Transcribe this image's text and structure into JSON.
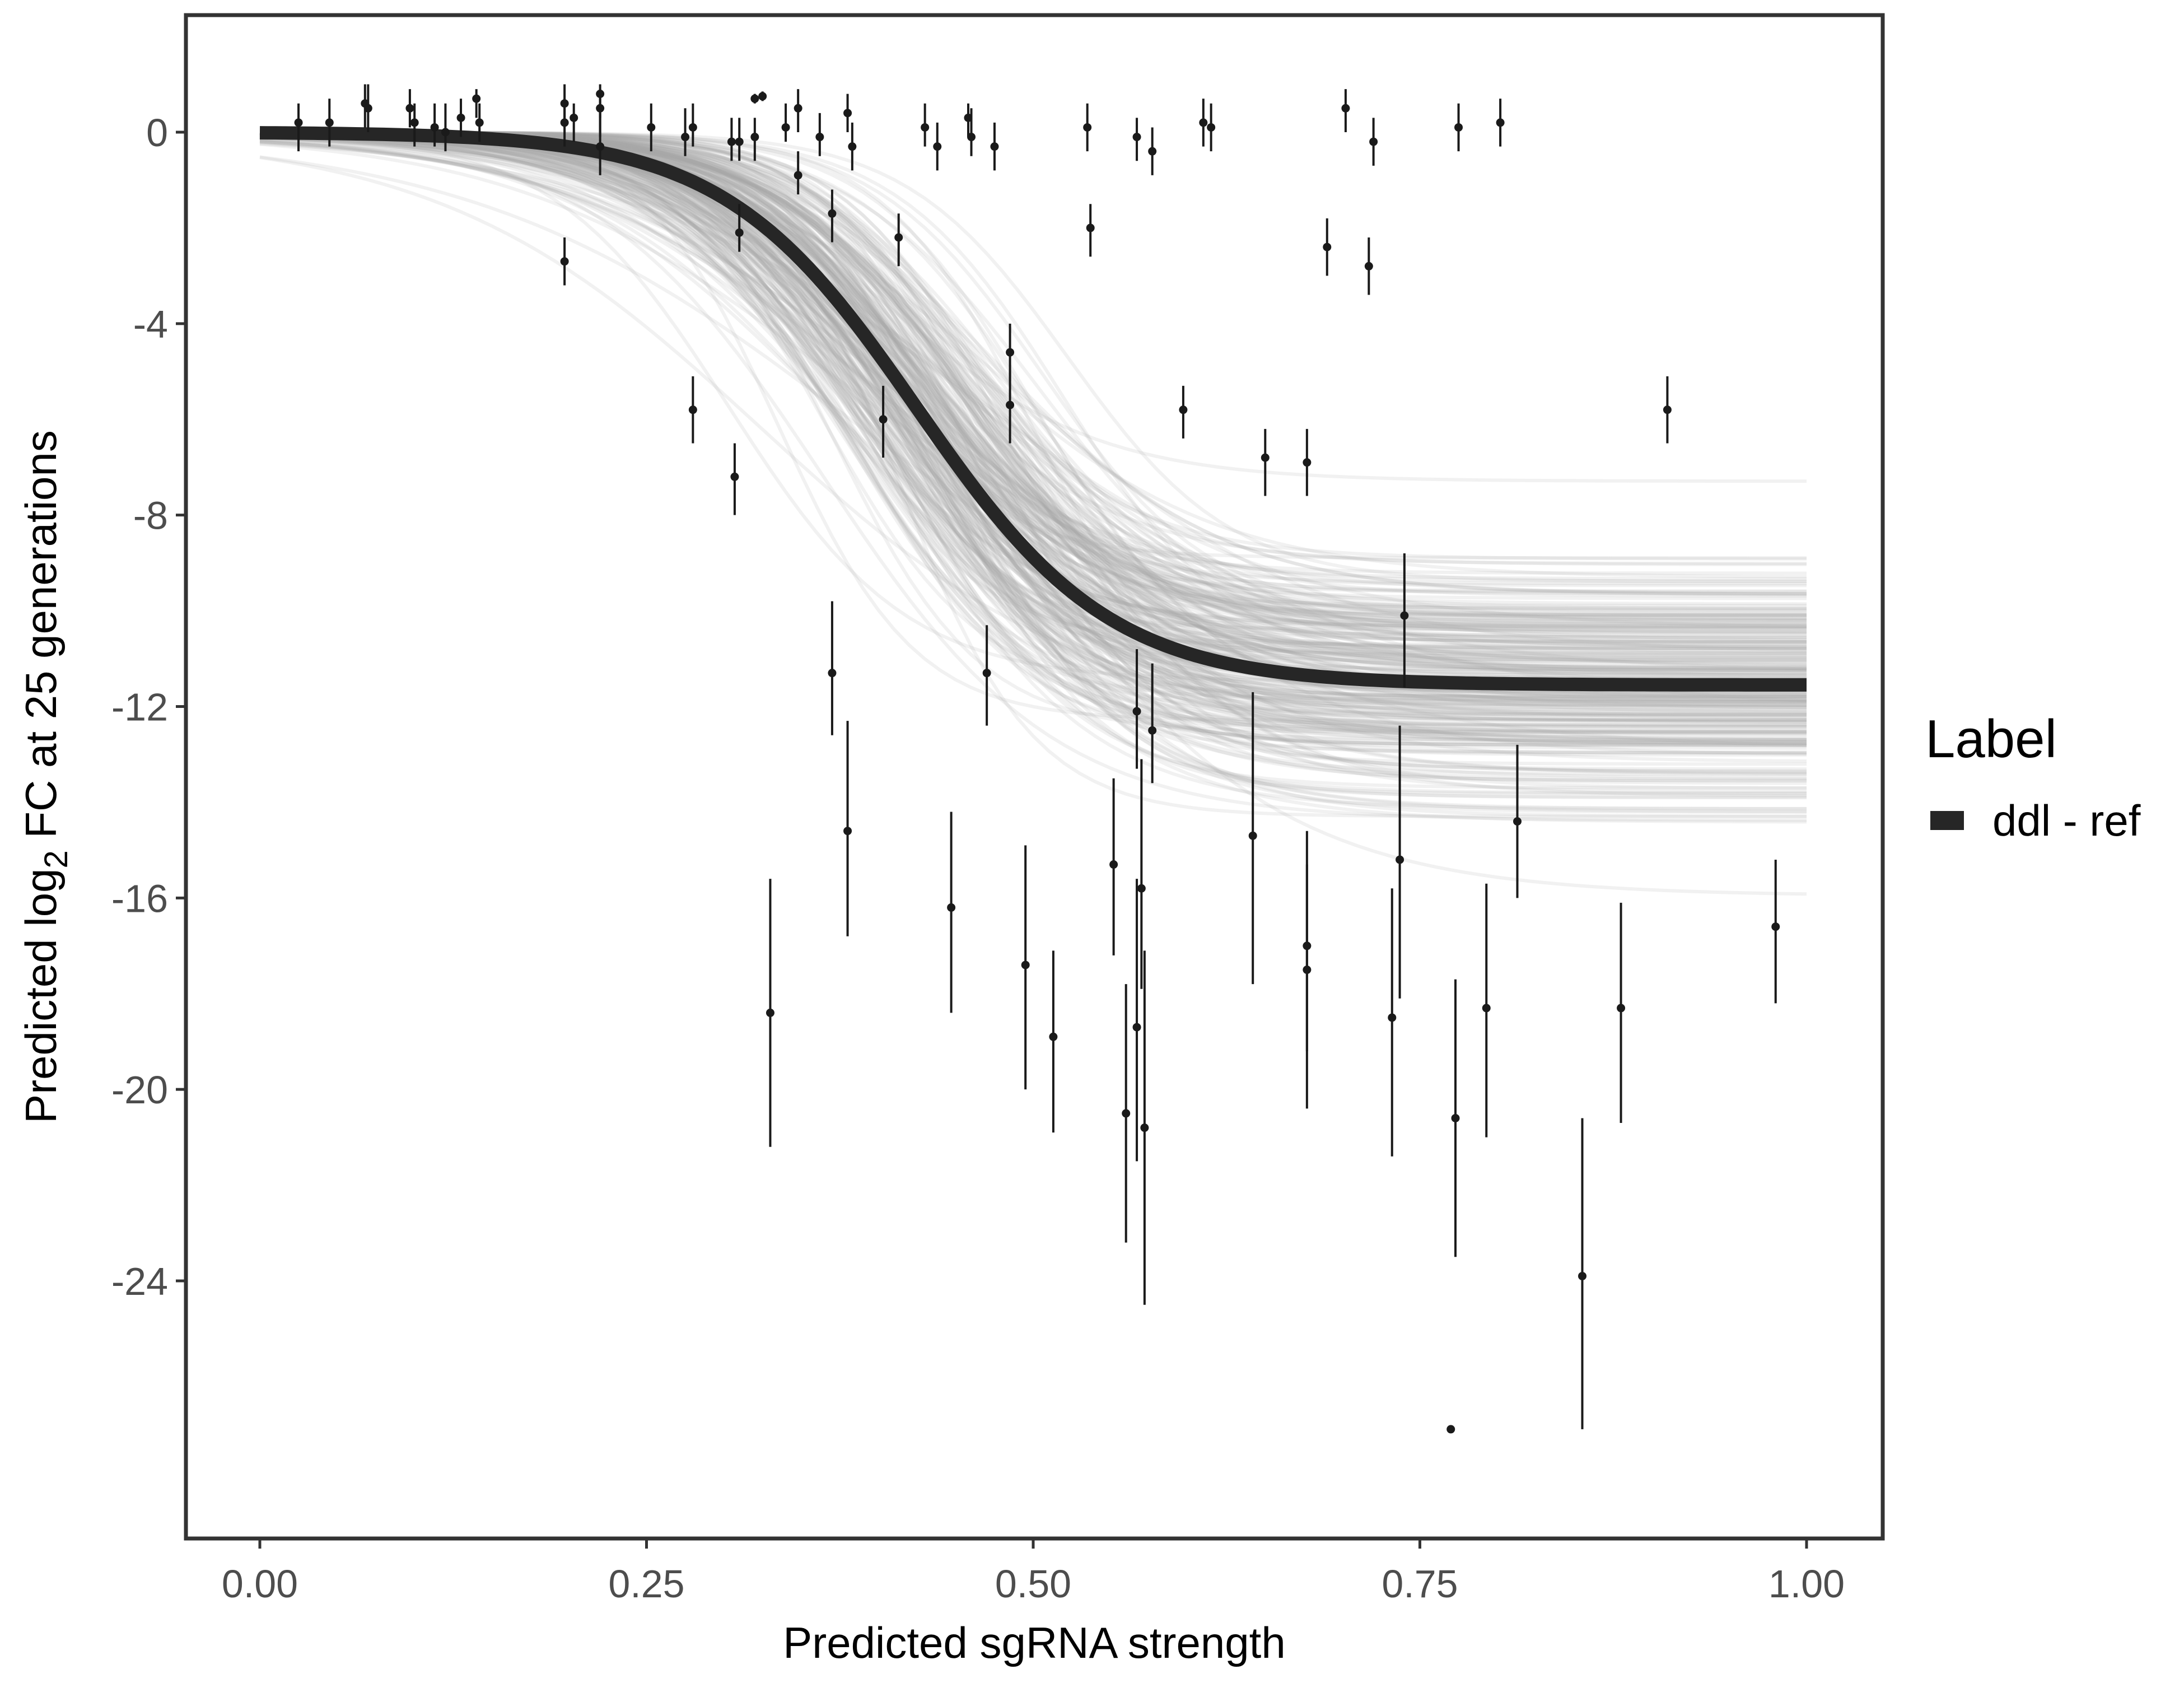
{
  "chart_data": {
    "type": "scatter",
    "xlabel": "Predicted sgRNA strength",
    "ylabel": {
      "prefix": "Predicted  log",
      "subscript": "2",
      "suffix": " FC at 25 generations"
    },
    "xlim": [
      -0.05,
      1.05
    ],
    "ylim": [
      -29.5,
      2.5
    ],
    "x_ticks": [
      0.0,
      0.25,
      0.5,
      0.75,
      1.0
    ],
    "x_tick_labels": [
      "0.00",
      "0.25",
      "0.50",
      "0.75",
      "1.00"
    ],
    "y_ticks": [
      0,
      -4,
      -8,
      -12,
      -16,
      -20,
      -24
    ],
    "y_tick_labels": [
      "0",
      "-4",
      "-8",
      "-12",
      "-16",
      "-20",
      "-24"
    ],
    "grid": false,
    "legend": {
      "title": "Label",
      "position": "right",
      "entries": [
        {
          "label": "ddl - ref",
          "color": "#262626"
        }
      ]
    },
    "fit": {
      "name": "ddl - ref",
      "form": "y = A / (1 + exp(-k (x - x0)))",
      "A": -11.55,
      "k": 16,
      "x0": 0.425,
      "color": "#262626",
      "posterior_draw_color": "#a6a6a6"
    },
    "points": [
      {
        "x": 0.025,
        "y": 0.2,
        "lo": -0.4,
        "hi": 0.6
      },
      {
        "x": 0.045,
        "y": 0.2,
        "lo": -0.3,
        "hi": 0.7
      },
      {
        "x": 0.068,
        "y": 0.6,
        "lo": 0.1,
        "hi": 1.0
      },
      {
        "x": 0.07,
        "y": 0.5,
        "lo": 0.0,
        "hi": 1.0
      },
      {
        "x": 0.097,
        "y": 0.5,
        "lo": 0.1,
        "hi": 0.9
      },
      {
        "x": 0.1,
        "y": 0.2,
        "lo": -0.3,
        "hi": 0.6
      },
      {
        "x": 0.113,
        "y": 0.1,
        "lo": -0.3,
        "hi": 0.6
      },
      {
        "x": 0.12,
        "y": 0.0,
        "lo": -0.4,
        "hi": 0.6
      },
      {
        "x": 0.13,
        "y": 0.3,
        "lo": -0.1,
        "hi": 0.7
      },
      {
        "x": 0.14,
        "y": 0.7,
        "lo": 0.3,
        "hi": 0.9
      },
      {
        "x": 0.142,
        "y": 0.2,
        "lo": -0.2,
        "hi": 0.6
      },
      {
        "x": 0.197,
        "y": 0.6,
        "lo": 0.1,
        "hi": 1.0
      },
      {
        "x": 0.197,
        "y": 0.2,
        "lo": -0.3,
        "hi": 0.7
      },
      {
        "x": 0.197,
        "y": -2.7,
        "lo": -3.2,
        "hi": -2.2
      },
      {
        "x": 0.203,
        "y": 0.3,
        "lo": -0.2,
        "hi": 0.6
      },
      {
        "x": 0.22,
        "y": 0.8,
        "lo": 0.3,
        "hi": 1.0
      },
      {
        "x": 0.22,
        "y": 0.5,
        "lo": -0.1,
        "hi": 0.9
      },
      {
        "x": 0.22,
        "y": -0.3,
        "lo": -0.9,
        "hi": 0.4
      },
      {
        "x": 0.253,
        "y": 0.1,
        "lo": -0.4,
        "hi": 0.6
      },
      {
        "x": 0.275,
        "y": -0.1,
        "lo": -0.5,
        "hi": 0.5
      },
      {
        "x": 0.28,
        "y": 0.1,
        "lo": -0.3,
        "hi": 0.6
      },
      {
        "x": 0.28,
        "y": -5.8,
        "lo": -6.5,
        "hi": -5.1
      },
      {
        "x": 0.305,
        "y": -0.2,
        "lo": -0.6,
        "hi": 0.3
      },
      {
        "x": 0.307,
        "y": -7.2,
        "lo": -8.0,
        "hi": -6.5
      },
      {
        "x": 0.31,
        "y": -2.1,
        "lo": -2.5,
        "hi": -1.5
      },
      {
        "x": 0.31,
        "y": -0.2,
        "lo": -0.6,
        "hi": 0.3
      },
      {
        "x": 0.32,
        "y": -0.1,
        "lo": -0.6,
        "hi": 0.3
      },
      {
        "x": 0.32,
        "y": 0.7,
        "lo": 0.6,
        "hi": 0.8
      },
      {
        "x": 0.325,
        "y": 0.75,
        "lo": 0.65,
        "hi": 0.85
      },
      {
        "x": 0.33,
        "y": -18.4,
        "lo": -21.2,
        "hi": -15.6
      },
      {
        "x": 0.34,
        "y": 0.1,
        "lo": -0.2,
        "hi": 0.6
      },
      {
        "x": 0.348,
        "y": 0.5,
        "lo": 0.0,
        "hi": 0.9
      },
      {
        "x": 0.348,
        "y": -0.9,
        "lo": -1.3,
        "hi": -0.4
      },
      {
        "x": 0.362,
        "y": -0.1,
        "lo": -0.5,
        "hi": 0.4
      },
      {
        "x": 0.37,
        "y": -1.7,
        "lo": -2.3,
        "hi": -1.2
      },
      {
        "x": 0.37,
        "y": -11.3,
        "lo": -12.6,
        "hi": -9.8
      },
      {
        "x": 0.38,
        "y": 0.4,
        "lo": 0.0,
        "hi": 0.8
      },
      {
        "x": 0.38,
        "y": -14.6,
        "lo": -16.8,
        "hi": -12.3
      },
      {
        "x": 0.383,
        "y": -0.3,
        "lo": -0.8,
        "hi": 0.2
      },
      {
        "x": 0.403,
        "y": -6.0,
        "lo": -6.8,
        "hi": -5.3
      },
      {
        "x": 0.413,
        "y": -2.2,
        "lo": -2.8,
        "hi": -1.7
      },
      {
        "x": 0.43,
        "y": 0.1,
        "lo": -0.3,
        "hi": 0.6
      },
      {
        "x": 0.438,
        "y": -0.3,
        "lo": -0.8,
        "hi": 0.2
      },
      {
        "x": 0.447,
        "y": -16.2,
        "lo": -18.4,
        "hi": -14.2
      },
      {
        "x": 0.458,
        "y": 0.3,
        "lo": -0.1,
        "hi": 0.6
      },
      {
        "x": 0.46,
        "y": -0.1,
        "lo": -0.5,
        "hi": 0.5
      },
      {
        "x": 0.47,
        "y": -11.3,
        "lo": -12.4,
        "hi": -10.3
      },
      {
        "x": 0.475,
        "y": -0.3,
        "lo": -0.8,
        "hi": 0.2
      },
      {
        "x": 0.485,
        "y": -4.6,
        "lo": -5.2,
        "hi": -4.0
      },
      {
        "x": 0.485,
        "y": -5.7,
        "lo": -6.5,
        "hi": -5.0
      },
      {
        "x": 0.495,
        "y": -17.4,
        "lo": -20.0,
        "hi": -14.9
      },
      {
        "x": 0.513,
        "y": -18.9,
        "lo": -20.9,
        "hi": -17.1
      },
      {
        "x": 0.535,
        "y": 0.1,
        "lo": -0.4,
        "hi": 0.6
      },
      {
        "x": 0.537,
        "y": -2.0,
        "lo": -2.6,
        "hi": -1.5
      },
      {
        "x": 0.552,
        "y": -15.3,
        "lo": -17.2,
        "hi": -13.5
      },
      {
        "x": 0.56,
        "y": -20.5,
        "lo": -23.2,
        "hi": -17.8
      },
      {
        "x": 0.567,
        "y": -0.1,
        "lo": -0.6,
        "hi": 0.3
      },
      {
        "x": 0.567,
        "y": -12.1,
        "lo": -13.3,
        "hi": -10.8
      },
      {
        "x": 0.567,
        "y": -18.7,
        "lo": -21.5,
        "hi": -15.6
      },
      {
        "x": 0.57,
        "y": -15.8,
        "lo": -17.9,
        "hi": -13.1
      },
      {
        "x": 0.572,
        "y": -20.8,
        "lo": -24.5,
        "hi": -17.1
      },
      {
        "x": 0.577,
        "y": -0.4,
        "lo": -0.9,
        "hi": 0.1
      },
      {
        "x": 0.577,
        "y": -12.5,
        "lo": -13.6,
        "hi": -11.1
      },
      {
        "x": 0.597,
        "y": -5.8,
        "lo": -6.4,
        "hi": -5.3
      },
      {
        "x": 0.61,
        "y": 0.2,
        "lo": -0.3,
        "hi": 0.7
      },
      {
        "x": 0.615,
        "y": 0.1,
        "lo": -0.4,
        "hi": 0.6
      },
      {
        "x": 0.642,
        "y": -14.7,
        "lo": -17.8,
        "hi": -11.7
      },
      {
        "x": 0.65,
        "y": -6.8,
        "lo": -7.6,
        "hi": -6.2
      },
      {
        "x": 0.677,
        "y": -6.9,
        "lo": -7.6,
        "hi": -6.2
      },
      {
        "x": 0.677,
        "y": -17.0,
        "lo": -19.2,
        "hi": -14.6
      },
      {
        "x": 0.677,
        "y": -17.5,
        "lo": -20.4,
        "hi": -15.3
      },
      {
        "x": 0.69,
        "y": -2.4,
        "lo": -3.0,
        "hi": -1.8
      },
      {
        "x": 0.702,
        "y": 0.5,
        "lo": 0.0,
        "hi": 0.9
      },
      {
        "x": 0.717,
        "y": -2.8,
        "lo": -3.4,
        "hi": -2.2
      },
      {
        "x": 0.72,
        "y": -0.2,
        "lo": -0.7,
        "hi": 0.3
      },
      {
        "x": 0.732,
        "y": -18.5,
        "lo": -21.4,
        "hi": -15.8
      },
      {
        "x": 0.737,
        "y": -15.2,
        "lo": -18.1,
        "hi": -12.4
      },
      {
        "x": 0.74,
        "y": -10.1,
        "lo": -11.6,
        "hi": -8.8
      },
      {
        "x": 0.77,
        "y": -27.1,
        "lo": -27.1,
        "hi": -27.1
      },
      {
        "x": 0.773,
        "y": -20.6,
        "lo": -23.5,
        "hi": -17.7
      },
      {
        "x": 0.775,
        "y": 0.1,
        "lo": -0.4,
        "hi": 0.6
      },
      {
        "x": 0.793,
        "y": -18.3,
        "lo": -21.0,
        "hi": -15.7
      },
      {
        "x": 0.802,
        "y": 0.2,
        "lo": -0.3,
        "hi": 0.7
      },
      {
        "x": 0.813,
        "y": -14.4,
        "lo": -16.0,
        "hi": -12.8
      },
      {
        "x": 0.855,
        "y": -23.9,
        "lo": -27.1,
        "hi": -20.6
      },
      {
        "x": 0.88,
        "y": -18.3,
        "lo": -20.7,
        "hi": -16.1
      },
      {
        "x": 0.91,
        "y": -5.8,
        "lo": -6.5,
        "hi": -5.1
      },
      {
        "x": 0.98,
        "y": -16.6,
        "lo": -18.2,
        "hi": -15.2
      }
    ]
  }
}
